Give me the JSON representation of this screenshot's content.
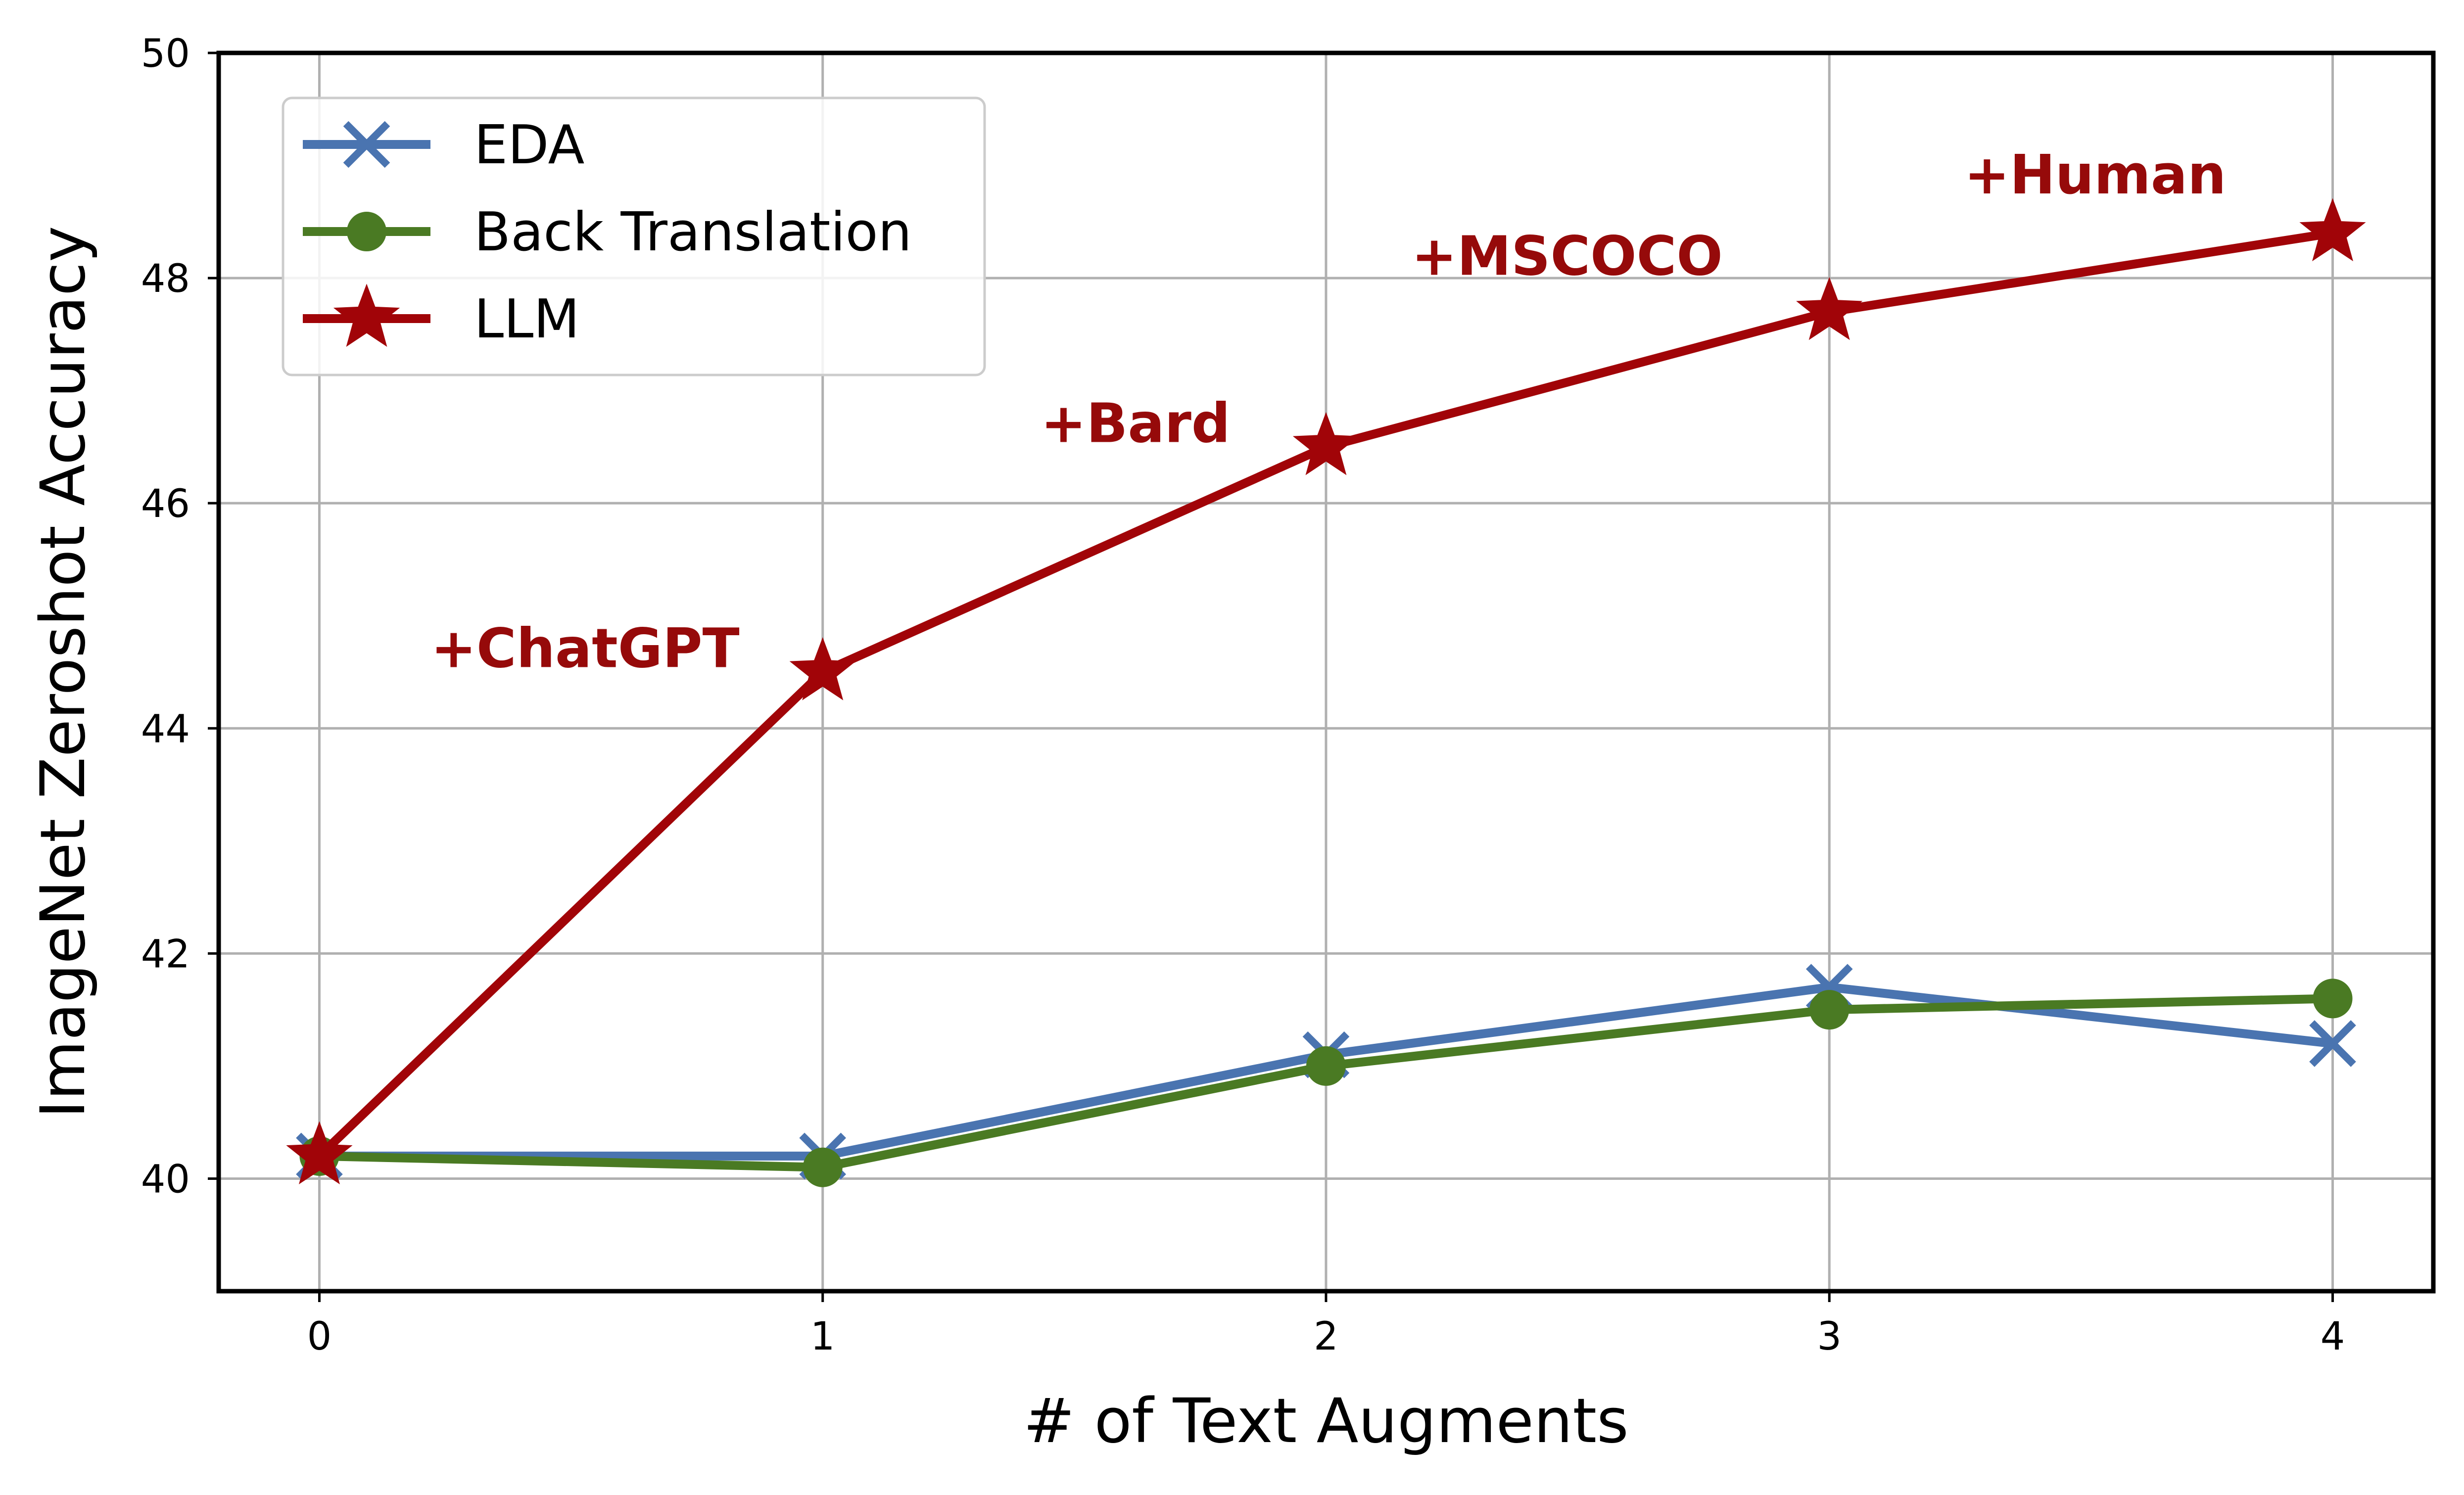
{
  "chart_data": {
    "type": "line",
    "title": "",
    "xlabel": "# of Text Augments",
    "ylabel": "ImageNet Zeroshot Accuracy",
    "x": [
      0,
      1,
      2,
      3,
      4
    ],
    "xticks": [
      "0",
      "1",
      "2",
      "3",
      "4"
    ],
    "yticks": [
      "40",
      "42",
      "44",
      "46",
      "48",
      "50"
    ],
    "xlim": [
      -0.2,
      4.2
    ],
    "ylim": [
      39,
      50
    ],
    "grid": true,
    "legend_position": "top-left",
    "series": [
      {
        "name": "EDA",
        "values": [
          40.2,
          40.2,
          41.1,
          41.7,
          41.2
        ],
        "color": "#4a74b0",
        "marker": "x"
      },
      {
        "name": "Back Translation",
        "values": [
          40.2,
          40.1,
          41.0,
          41.5,
          41.6
        ],
        "color": "#4a7a23",
        "marker": "circle"
      },
      {
        "name": "LLM",
        "values": [
          40.2,
          44.5,
          46.5,
          47.7,
          48.4
        ],
        "color": "#a10408",
        "marker": "star"
      }
    ],
    "annotations": [
      {
        "text": "+ChatGPT",
        "x": 1,
        "y": 44.5,
        "color": "#960a0a"
      },
      {
        "text": "+Bard",
        "x": 2,
        "y": 46.5,
        "color": "#960a0a"
      },
      {
        "text": "+MSCOCO",
        "x": 3,
        "y": 47.7,
        "color": "#960a0a"
      },
      {
        "text": "+Human",
        "x": 4,
        "y": 48.4,
        "color": "#960a0a"
      }
    ]
  }
}
